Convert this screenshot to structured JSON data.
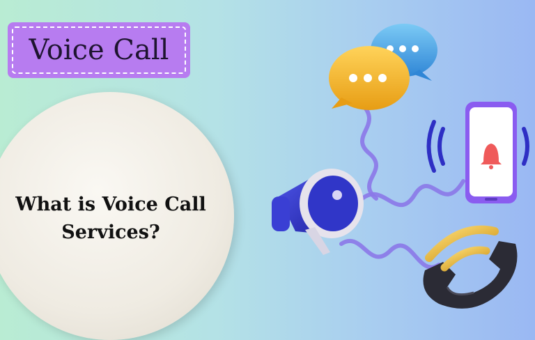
{
  "badge": {
    "label": "Voice Call"
  },
  "headline": {
    "line1": "What is Voice Call",
    "line2": "Services?"
  },
  "icons": [
    "chat-bubble-icon",
    "megaphone-icon",
    "smartphone-icon",
    "bell-icon",
    "telephone-handset-icon"
  ],
  "colors": {
    "badge": "#b77cf0",
    "bubble_yellow": "#f3b62c",
    "bubble_blue": "#4aa7e6",
    "megaphone": "#2e2fc4",
    "phone_frame": "#8a5cf0",
    "bell": "#ef5a5a",
    "handset": "#2b2b35",
    "gold": "#e4b42a"
  }
}
